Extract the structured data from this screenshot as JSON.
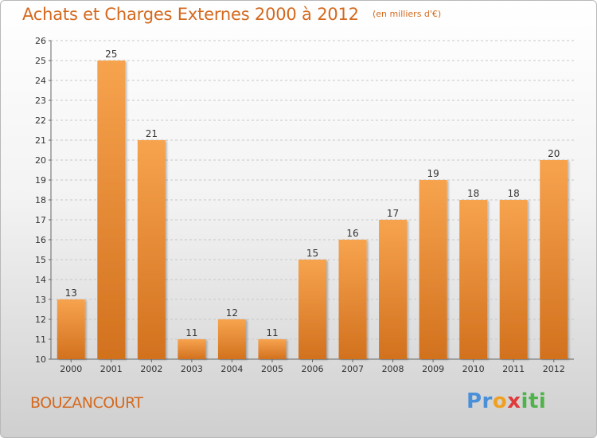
{
  "header": {
    "title": "Achats et Charges Externes 2000 à 2012",
    "subtitle": "(en milliers d'€)"
  },
  "footer": {
    "place": "BOUZANCOURT",
    "logo": "Proxiti"
  },
  "colors": {
    "bar_top": "#f7a34e",
    "bar_bottom": "#d2711e",
    "accent": "#d4691e",
    "grid": "#c8c8c8"
  },
  "chart_data": {
    "type": "bar",
    "title": "Achats et Charges Externes 2000 à 2012",
    "subtitle": "(en milliers d'€)",
    "categories": [
      "2000",
      "2001",
      "2002",
      "2003",
      "2004",
      "2005",
      "2006",
      "2007",
      "2008",
      "2009",
      "2010",
      "2011",
      "2012"
    ],
    "values": [
      13,
      25,
      21,
      11,
      12,
      11,
      15,
      16,
      17,
      19,
      18,
      18,
      20
    ],
    "ylim": [
      10,
      26
    ],
    "yticks": [
      10,
      11,
      12,
      13,
      14,
      15,
      16,
      17,
      18,
      19,
      20,
      21,
      22,
      23,
      24,
      25,
      26
    ],
    "grid": "horizontal dashed",
    "data_labels": true
  }
}
